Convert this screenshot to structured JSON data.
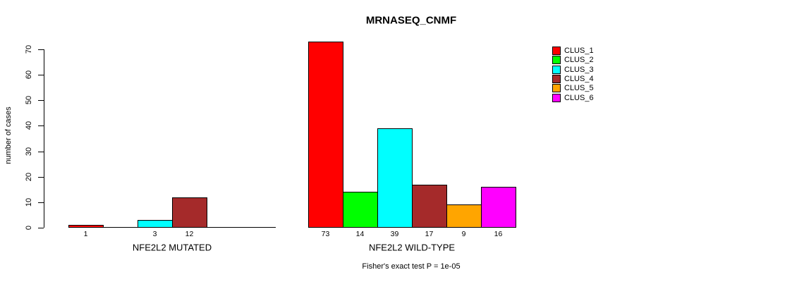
{
  "title": "MRNASEQ_CNMF",
  "chart_data": {
    "type": "bar",
    "title": "MRNASEQ_CNMF",
    "ylabel": "number of cases",
    "ylim": [
      0,
      70
    ],
    "yticks": [
      0,
      10,
      20,
      30,
      40,
      50,
      60,
      70
    ],
    "grid": false,
    "legend_position": "right",
    "legend": [
      {
        "label": "CLUS_1",
        "color": "#FF0000"
      },
      {
        "label": "CLUS_2",
        "color": "#00FF00"
      },
      {
        "label": "CLUS_3",
        "color": "#00FFFF"
      },
      {
        "label": "CLUS_4",
        "color": "#A52A2A"
      },
      {
        "label": "CLUS_5",
        "color": "#FFA500"
      },
      {
        "label": "CLUS_6",
        "color": "#FF00FF"
      }
    ],
    "groups": [
      {
        "label": "NFE2L2 MUTATED",
        "series": [
          "CLUS_1",
          "CLUS_2",
          "CLUS_3",
          "CLUS_4",
          "CLUS_5",
          "CLUS_6"
        ],
        "values": [
          1,
          0,
          3,
          12,
          0,
          0
        ]
      },
      {
        "label": "NFE2L2 WILD-TYPE",
        "series": [
          "CLUS_1",
          "CLUS_2",
          "CLUS_3",
          "CLUS_4",
          "CLUS_5",
          "CLUS_6"
        ],
        "values": [
          73,
          14,
          39,
          17,
          9,
          16
        ]
      }
    ],
    "annotation": "Fisher's exact test P = 1e-05"
  },
  "colors": {
    "background": "#FFFFFF",
    "axis": "#000000",
    "text": "#000000"
  }
}
